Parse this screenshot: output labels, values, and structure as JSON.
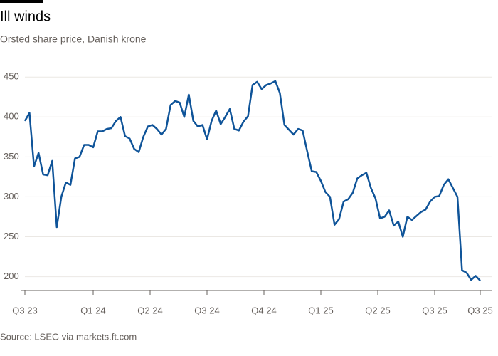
{
  "chart_data": {
    "type": "line",
    "title": "Ill winds",
    "subtitle": "Orsted share price, Danish krone",
    "source": "Source: LSEG via markets.ft.com",
    "x": [
      2023.7,
      2023.72,
      2023.74,
      2023.76,
      2023.78,
      2023.8,
      2023.82,
      2023.84,
      2023.86,
      2023.88,
      2023.9,
      2023.92,
      2023.94,
      2023.96,
      2023.98,
      2024.0,
      2024.02,
      2024.04,
      2024.06,
      2024.08,
      2024.1,
      2024.12,
      2024.14,
      2024.16,
      2024.18,
      2024.2,
      2024.22,
      2024.24,
      2024.26,
      2024.28,
      2024.3,
      2024.32,
      2024.34,
      2024.36,
      2024.38,
      2024.4,
      2024.42,
      2024.44,
      2024.46,
      2024.48,
      2024.5,
      2024.52,
      2024.54,
      2024.56,
      2024.58,
      2024.6,
      2024.62,
      2024.64,
      2024.66,
      2024.68,
      2024.7,
      2024.72,
      2024.74,
      2024.76,
      2024.78,
      2024.8,
      2024.82,
      2024.84,
      2024.86,
      2024.88,
      2024.9,
      2024.92,
      2024.94,
      2024.96,
      2024.98,
      2025.0,
      2025.02,
      2025.04,
      2025.06,
      2025.08,
      2025.1,
      2025.12,
      2025.14,
      2025.16,
      2025.18,
      2025.2,
      2025.22,
      2025.24,
      2025.26,
      2025.28,
      2025.3,
      2025.32,
      2025.34,
      2025.36,
      2025.38,
      2025.4,
      2025.42,
      2025.44,
      2025.46,
      2025.48,
      2025.5,
      2025.52,
      2025.54,
      2025.56,
      2025.58,
      2025.6,
      2025.62,
      2025.64,
      2025.66,
      2025.68,
      2025.7
    ],
    "series": [
      {
        "name": "Orsted",
        "color": "#0f5499",
        "values": [
          395,
          405,
          338,
          355,
          328,
          327,
          345,
          262,
          300,
          318,
          315,
          348,
          350,
          365,
          365,
          362,
          382,
          382,
          385,
          386,
          395,
          400,
          376,
          373,
          360,
          356,
          375,
          388,
          390,
          385,
          378,
          385,
          415,
          420,
          418,
          400,
          428,
          395,
          388,
          390,
          372,
          395,
          408,
          391,
          400,
          410,
          385,
          383,
          394,
          401,
          440,
          444,
          435,
          440,
          442,
          445,
          430,
          390,
          384,
          378,
          385,
          383,
          357,
          332,
          331,
          320,
          306,
          300,
          265,
          272,
          294,
          297,
          305,
          323,
          327,
          330,
          311,
          298,
          273,
          275,
          283,
          264,
          269,
          250,
          275,
          271,
          276,
          281,
          284,
          294,
          300,
          301,
          315,
          322,
          311,
          300,
          208,
          205,
          196,
          201,
          195
        ]
      }
    ],
    "xlim": [
      2023.7,
      2025.72
    ],
    "xticks": [
      {
        "value": 2023.7,
        "label": "Q3 23"
      },
      {
        "value": 2024.0,
        "label": "Q1 24"
      },
      {
        "value": 2024.25,
        "label": "Q2 24"
      },
      {
        "value": 2024.5,
        "label": "Q3 24"
      },
      {
        "value": 2024.75,
        "label": "Q4 24"
      },
      {
        "value": 2025.0,
        "label": "Q1 25"
      },
      {
        "value": 2025.25,
        "label": "Q2 25"
      },
      {
        "value": 2025.5,
        "label": "Q3 25"
      },
      {
        "value": 2025.7,
        "label": "Q3 25"
      }
    ],
    "ylim": [
      180,
      460
    ],
    "yticks": [
      200,
      250,
      300,
      350,
      400,
      450
    ],
    "grid": true
  }
}
